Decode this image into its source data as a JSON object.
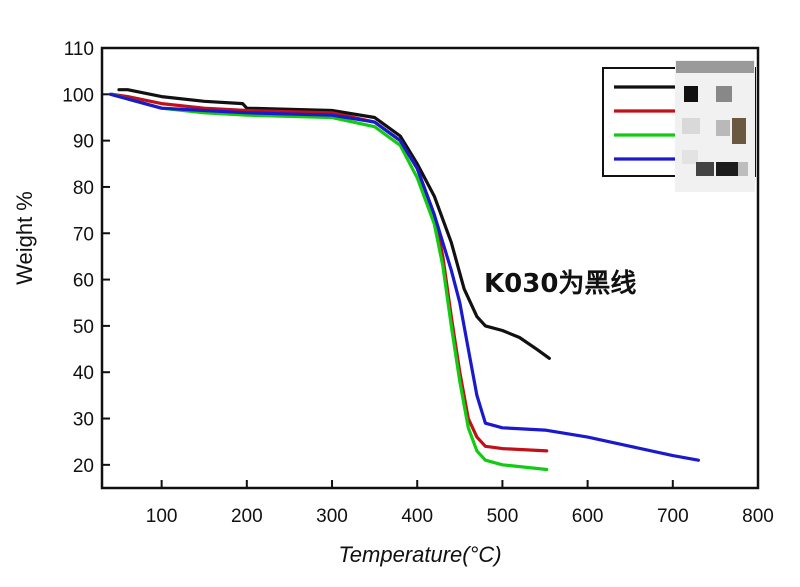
{
  "chart_data": {
    "type": "line",
    "title": "",
    "xlabel": "Temperature(°C)",
    "ylabel": "Weight %",
    "xlim": [
      30,
      800
    ],
    "ylim": [
      15,
      110
    ],
    "x_ticks": [
      100,
      200,
      300,
      400,
      500,
      600,
      700,
      800
    ],
    "y_ticks": [
      20,
      30,
      40,
      50,
      60,
      70,
      80,
      90,
      100,
      110
    ],
    "grid": false,
    "legend_position": "top-right",
    "annotation": "K030为黑线",
    "series": [
      {
        "color": "#111111",
        "x": [
          50,
          60,
          100,
          150,
          195,
          200,
          300,
          350,
          380,
          400,
          420,
          440,
          455,
          470,
          480,
          500,
          520,
          540,
          555
        ],
        "y": [
          101,
          101,
          99.5,
          98.5,
          98,
          97,
          96.5,
          95,
          91,
          85,
          78,
          68,
          58,
          52,
          50,
          49,
          47.5,
          45,
          43
        ]
      },
      {
        "color": "#c0101a",
        "x": [
          42,
          60,
          100,
          150,
          200,
          300,
          350,
          380,
          400,
          420,
          430,
          440,
          450,
          460,
          470,
          480,
          500,
          552
        ],
        "y": [
          100,
          99.5,
          98,
          97,
          96.5,
          96,
          94,
          90,
          84,
          74,
          65,
          52,
          40,
          30,
          26,
          24,
          23.5,
          23
        ]
      },
      {
        "color": "#11cc11",
        "x": [
          42,
          60,
          100,
          150,
          200,
          300,
          350,
          380,
          400,
          420,
          430,
          440,
          450,
          460,
          470,
          480,
          500,
          552
        ],
        "y": [
          100,
          99,
          97,
          96,
          95.5,
          95,
          93,
          89,
          82,
          72,
          63,
          50,
          38,
          28,
          23,
          21,
          20,
          19
        ]
      },
      {
        "color": "#1a1acc",
        "x": [
          40,
          60,
          100,
          150,
          200,
          300,
          350,
          380,
          400,
          420,
          440,
          450,
          460,
          470,
          480,
          500,
          550,
          600,
          650,
          700,
          730
        ],
        "y": [
          100,
          99,
          97,
          96.5,
          96,
          95.5,
          94,
          90,
          84,
          74,
          62,
          55,
          45,
          35,
          29,
          28,
          27.5,
          26,
          24,
          22,
          21
        ]
      }
    ]
  }
}
